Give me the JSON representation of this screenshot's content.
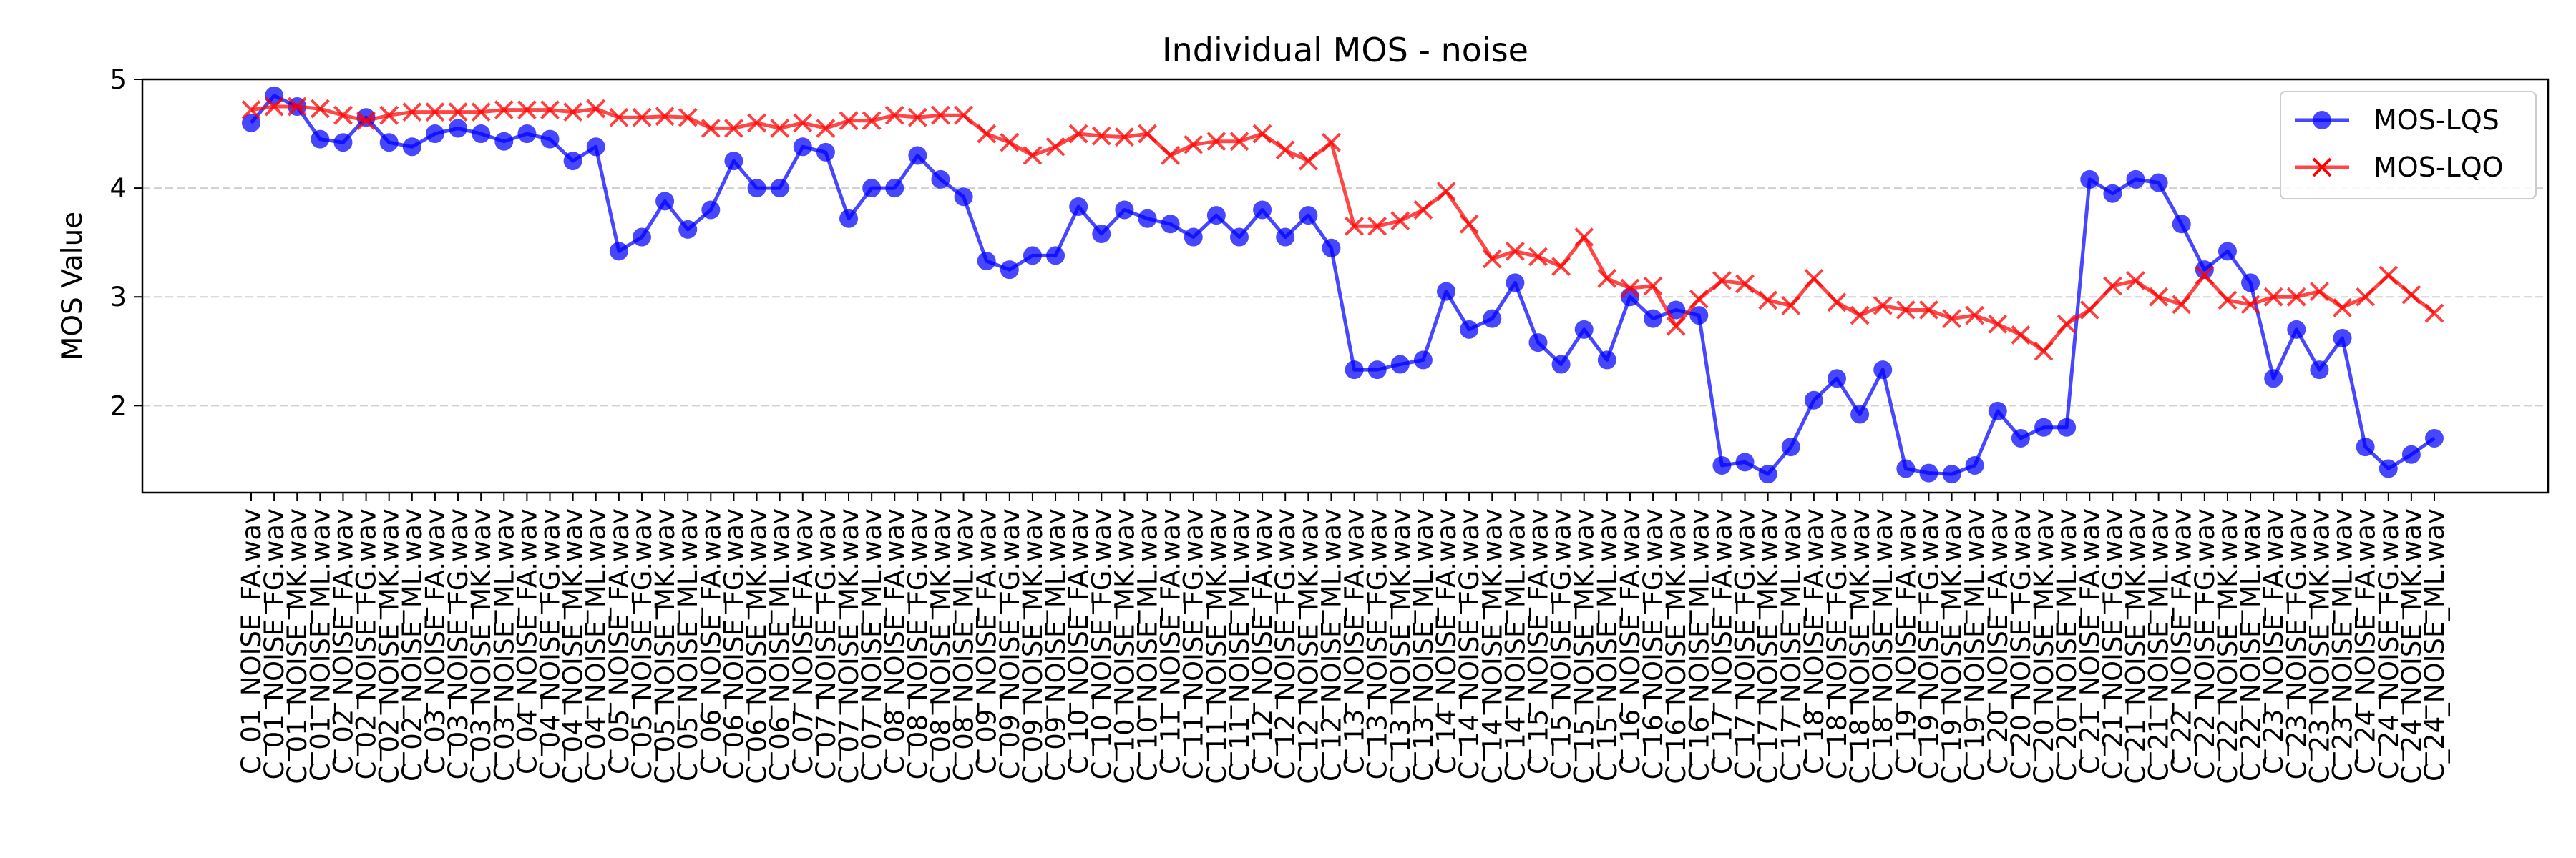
{
  "chart_data": {
    "type": "line",
    "title": "Individual MOS - noise",
    "xlabel": "",
    "ylabel": "MOS Value",
    "yticks": [
      2,
      3,
      4,
      5
    ],
    "ylim": [
      1.2,
      5.0
    ],
    "grid": "y-dashed",
    "legend_position": "top-right",
    "colors": {
      "MOS-LQS": "#0000ff",
      "MOS-LQO": "#ff0000"
    },
    "categories": [
      "C_01_NOISE_FA.wav",
      "C_01_NOISE_FG.wav",
      "C_01_NOISE_MK.wav",
      "C_01_NOISE_ML.wav",
      "C_02_NOISE_FA.wav",
      "C_02_NOISE_FG.wav",
      "C_02_NOISE_MK.wav",
      "C_02_NOISE_ML.wav",
      "C_03_NOISE_FA.wav",
      "C_03_NOISE_FG.wav",
      "C_03_NOISE_MK.wav",
      "C_03_NOISE_ML.wav",
      "C_04_NOISE_FA.wav",
      "C_04_NOISE_FG.wav",
      "C_04_NOISE_MK.wav",
      "C_04_NOISE_ML.wav",
      "C_05_NOISE_FA.wav",
      "C_05_NOISE_FG.wav",
      "C_05_NOISE_MK.wav",
      "C_05_NOISE_ML.wav",
      "C_06_NOISE_FA.wav",
      "C_06_NOISE_FG.wav",
      "C_06_NOISE_MK.wav",
      "C_06_NOISE_ML.wav",
      "C_07_NOISE_FA.wav",
      "C_07_NOISE_FG.wav",
      "C_07_NOISE_MK.wav",
      "C_07_NOISE_ML.wav",
      "C_08_NOISE_FA.wav",
      "C_08_NOISE_FG.wav",
      "C_08_NOISE_MK.wav",
      "C_08_NOISE_ML.wav",
      "C_09_NOISE_FA.wav",
      "C_09_NOISE_FG.wav",
      "C_09_NOISE_MK.wav",
      "C_09_NOISE_ML.wav",
      "C_10_NOISE_FA.wav",
      "C_10_NOISE_FG.wav",
      "C_10_NOISE_MK.wav",
      "C_10_NOISE_ML.wav",
      "C_11_NOISE_FA.wav",
      "C_11_NOISE_FG.wav",
      "C_11_NOISE_MK.wav",
      "C_11_NOISE_ML.wav",
      "C_12_NOISE_FA.wav",
      "C_12_NOISE_FG.wav",
      "C_12_NOISE_MK.wav",
      "C_12_NOISE_ML.wav",
      "C_13_NOISE_FA.wav",
      "C_13_NOISE_FG.wav",
      "C_13_NOISE_MK.wav",
      "C_13_NOISE_ML.wav",
      "C_14_NOISE_FA.wav",
      "C_14_NOISE_FG.wav",
      "C_14_NOISE_MK.wav",
      "C_14_NOISE_ML.wav",
      "C_15_NOISE_FA.wav",
      "C_15_NOISE_FG.wav",
      "C_15_NOISE_MK.wav",
      "C_15_NOISE_ML.wav",
      "C_16_NOISE_FA.wav",
      "C_16_NOISE_FG.wav",
      "C_16_NOISE_MK.wav",
      "C_16_NOISE_ML.wav",
      "C_17_NOISE_FA.wav",
      "C_17_NOISE_FG.wav",
      "C_17_NOISE_MK.wav",
      "C_17_NOISE_ML.wav",
      "C_18_NOISE_FA.wav",
      "C_18_NOISE_FG.wav",
      "C_18_NOISE_MK.wav",
      "C_18_NOISE_ML.wav",
      "C_19_NOISE_FA.wav",
      "C_19_NOISE_FG.wav",
      "C_19_NOISE_MK.wav",
      "C_19_NOISE_ML.wav",
      "C_20_NOISE_FA.wav",
      "C_20_NOISE_FG.wav",
      "C_20_NOISE_MK.wav",
      "C_20_NOISE_ML.wav",
      "C_21_NOISE_FA.wav",
      "C_21_NOISE_FG.wav",
      "C_21_NOISE_MK.wav",
      "C_21_NOISE_ML.wav",
      "C_22_NOISE_FA.wav",
      "C_22_NOISE_FG.wav",
      "C_22_NOISE_MK.wav",
      "C_22_NOISE_ML.wav",
      "C_23_NOISE_FA.wav",
      "C_23_NOISE_FG.wav",
      "C_23_NOISE_MK.wav",
      "C_23_NOISE_ML.wav",
      "C_24_NOISE_FA.wav",
      "C_24_NOISE_FG.wav",
      "C_24_NOISE_MK.wav",
      "C_24_NOISE_ML.wav"
    ],
    "series": [
      {
        "name": "MOS-LQS",
        "marker": "circle",
        "values": [
          4.6,
          4.85,
          4.75,
          4.45,
          4.42,
          4.65,
          4.42,
          4.38,
          4.5,
          4.55,
          4.5,
          4.43,
          4.5,
          4.45,
          4.25,
          4.38,
          3.42,
          3.55,
          3.88,
          3.62,
          3.8,
          4.25,
          4.0,
          4.0,
          4.38,
          4.33,
          3.72,
          4.0,
          4.0,
          4.3,
          4.08,
          3.92,
          3.33,
          3.25,
          3.38,
          3.38,
          3.83,
          3.58,
          3.8,
          3.72,
          3.67,
          3.55,
          3.75,
          3.55,
          3.8,
          3.55,
          3.75,
          3.45,
          2.33,
          2.33,
          2.38,
          2.42,
          3.05,
          2.7,
          2.8,
          3.13,
          2.58,
          2.38,
          2.7,
          2.42,
          3.0,
          2.8,
          2.88,
          2.83,
          1.45,
          1.48,
          1.37,
          1.62,
          2.05,
          2.25,
          1.92,
          2.33,
          1.42,
          1.38,
          1.37,
          1.45,
          1.95,
          1.7,
          1.8,
          1.8,
          4.08,
          3.95,
          4.08,
          4.05,
          3.67,
          3.25,
          3.42,
          3.13,
          2.25,
          2.7,
          2.33,
          2.62,
          1.62,
          1.42,
          1.55,
          1.7
        ]
      },
      {
        "name": "MOS-LQO",
        "marker": "x",
        "values": [
          4.72,
          4.75,
          4.75,
          4.73,
          4.67,
          4.62,
          4.67,
          4.7,
          4.7,
          4.7,
          4.7,
          4.72,
          4.72,
          4.72,
          4.7,
          4.73,
          4.65,
          4.65,
          4.66,
          4.65,
          4.55,
          4.55,
          4.6,
          4.55,
          4.6,
          4.55,
          4.62,
          4.62,
          4.67,
          4.65,
          4.67,
          4.67,
          4.5,
          4.42,
          4.3,
          4.38,
          4.5,
          4.48,
          4.47,
          4.5,
          4.3,
          4.4,
          4.43,
          4.43,
          4.5,
          4.35,
          4.25,
          4.42,
          3.65,
          3.65,
          3.7,
          3.8,
          3.97,
          3.67,
          3.35,
          3.42,
          3.37,
          3.28,
          3.55,
          3.17,
          3.08,
          3.1,
          2.73,
          2.98,
          3.15,
          3.12,
          2.97,
          2.92,
          3.17,
          2.95,
          2.83,
          2.92,
          2.88,
          2.88,
          2.8,
          2.83,
          2.75,
          2.65,
          2.5,
          2.75,
          2.88,
          3.1,
          3.15,
          3.0,
          2.93,
          3.2,
          2.97,
          2.93,
          3.0,
          3.0,
          3.05,
          2.9,
          3.0,
          3.2,
          3.02,
          2.85
        ]
      }
    ]
  }
}
